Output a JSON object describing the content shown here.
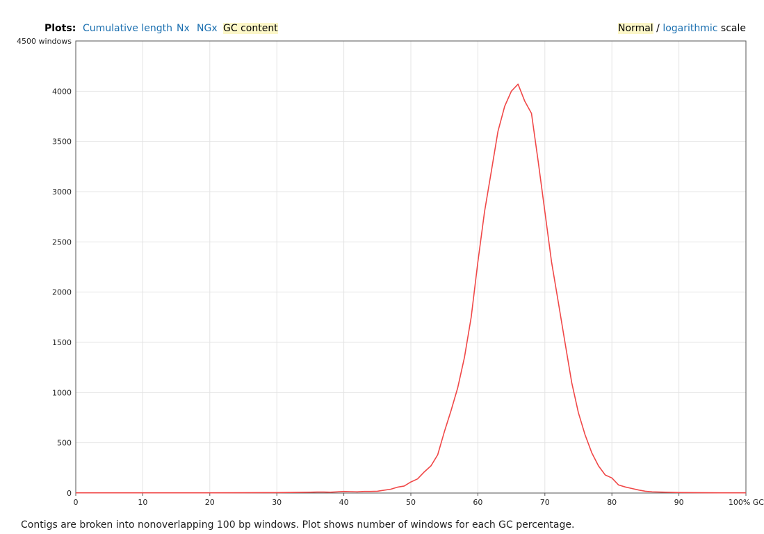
{
  "header": {
    "plots_label": "Plots:",
    "tabs": [
      {
        "label": "Cumulative length",
        "active": false
      },
      {
        "label": "Nx",
        "active": false
      },
      {
        "label": "NGx",
        "active": false
      },
      {
        "label": "GC content",
        "active": true
      }
    ],
    "scale": {
      "normal": "Normal",
      "separator": "/",
      "logarithmic": "logarithmic",
      "suffix": "scale",
      "active": "normal"
    }
  },
  "chart_data": {
    "type": "line",
    "title": "",
    "xlabel": "% GC",
    "ylabel": "windows",
    "xlim": [
      0,
      100
    ],
    "ylim": [
      0,
      4500
    ],
    "x_ticks": [
      0,
      10,
      20,
      30,
      40,
      50,
      60,
      70,
      80,
      90,
      100
    ],
    "x_tick_labels": [
      "0",
      "10",
      "20",
      "30",
      "40",
      "50",
      "60",
      "70",
      "80",
      "90",
      "100% GC"
    ],
    "y_ticks": [
      0,
      500,
      1000,
      1500,
      2000,
      2500,
      3000,
      3500,
      4000,
      4500
    ],
    "y_tick_labels": [
      "0",
      "500",
      "1000",
      "1500",
      "2000",
      "2500",
      "3000",
      "3500",
      "4000",
      "4500 windows"
    ],
    "grid": true,
    "series": [
      {
        "color": "#f04848",
        "x": [
          0,
          5,
          10,
          15,
          20,
          25,
          28,
          30,
          33,
          35,
          36,
          37,
          38,
          39,
          40,
          41,
          42,
          43,
          44,
          45,
          46,
          47,
          48,
          49,
          50,
          51,
          52,
          53,
          54,
          55,
          56,
          57,
          58,
          59,
          60,
          61,
          62,
          63,
          64,
          65,
          66,
          67,
          68,
          69,
          70,
          71,
          72,
          73,
          74,
          75,
          76,
          77,
          78,
          79,
          80,
          81,
          82,
          83,
          84,
          85,
          86,
          87,
          88,
          89,
          90,
          92,
          94,
          96,
          98,
          100
        ],
        "y": [
          2,
          2,
          2,
          2,
          2,
          3,
          4,
          4,
          6,
          8,
          10,
          10,
          8,
          12,
          16,
          14,
          12,
          16,
          16,
          18,
          28,
          38,
          58,
          70,
          110,
          140,
          210,
          270,
          380,
          610,
          820,
          1050,
          1350,
          1750,
          2300,
          2800,
          3200,
          3600,
          3850,
          4000,
          4070,
          3900,
          3780,
          3300,
          2800,
          2300,
          1900,
          1500,
          1100,
          800,
          580,
          400,
          270,
          180,
          150,
          80,
          60,
          45,
          30,
          18,
          12,
          10,
          8,
          6,
          5,
          4,
          3,
          2,
          2,
          2
        ]
      }
    ]
  },
  "footnote": "Contigs are broken into nonoverlapping 100 bp windows. Plot shows number of windows for each GC percentage."
}
